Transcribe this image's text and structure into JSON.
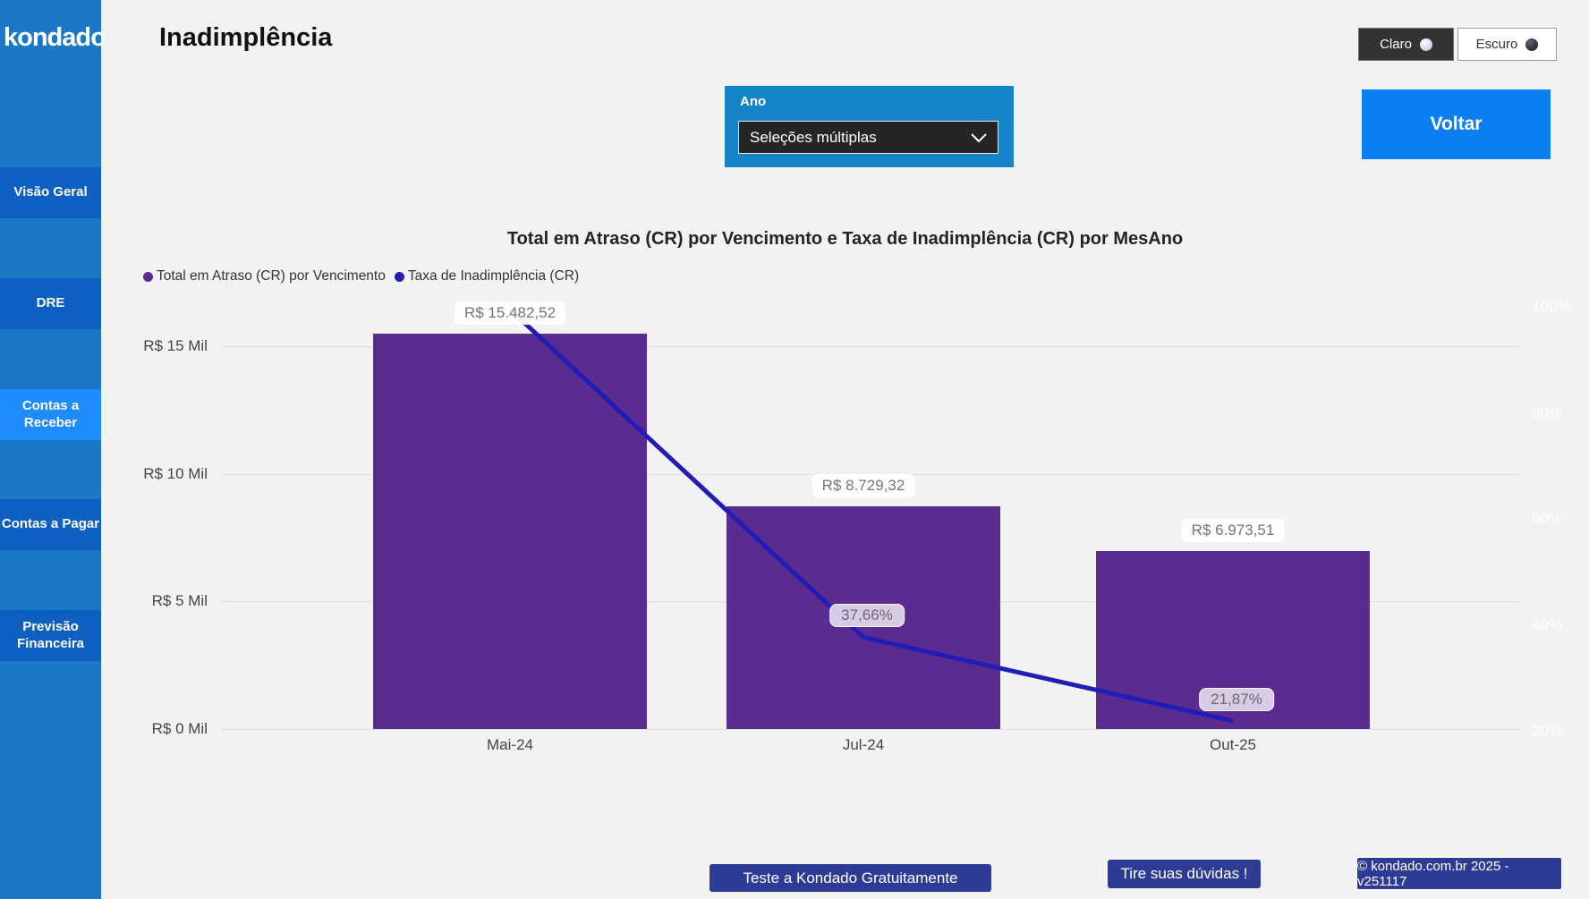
{
  "app": {
    "logo": "kondado"
  },
  "sidebar": {
    "items": [
      {
        "label": "Visão Geral",
        "active": false
      },
      {
        "label": "DRE",
        "active": false
      },
      {
        "label": "Contas a Receber",
        "active": true
      },
      {
        "label": "Contas a Pagar",
        "active": false
      },
      {
        "label": "Previsão Financeira",
        "active": false
      }
    ]
  },
  "header": {
    "title": "Inadimplência"
  },
  "theme_toggle": {
    "light_label": "Claro",
    "dark_label": "Escuro"
  },
  "filter": {
    "label": "Ano",
    "value": "Seleções múltiplas"
  },
  "voltar_label": "Voltar",
  "chart_data": {
    "type": "bar",
    "subtype": "combo-bar-line",
    "title": "Total em Atraso (CR) por Vencimento e Taxa de Inadimplência (CR) por MesAno",
    "categories": [
      "Mai-24",
      "Jul-24",
      "Out-25"
    ],
    "series": [
      {
        "name": "Total em Atraso (CR) por Vencimento",
        "type": "bar",
        "axis": "left",
        "values": [
          15482.52,
          8729.32,
          6973.51
        ],
        "labels": [
          "R$ 15.482,52",
          "R$ 8.729,32",
          "R$ 6.973,51"
        ],
        "color": "#5B2C8F"
      },
      {
        "name": "Taxa de Inadimplência (CR)",
        "type": "line",
        "axis": "right",
        "values": [
          99.5,
          37.66,
          21.87
        ],
        "labels": [
          "",
          "37,66%",
          "21,87%"
        ],
        "color": "#211CB5"
      }
    ],
    "left_axis": {
      "tick_labels": [
        "R$ 0 Mil",
        "R$ 5 Mil",
        "R$ 10 Mil",
        "R$ 15 Mil"
      ],
      "tick_values": [
        0,
        5000,
        10000,
        15000
      ],
      "min": 0,
      "max": 15000
    },
    "right_axis": {
      "tick_labels": [
        "20%",
        "40%",
        "60%",
        "80%",
        "100%"
      ],
      "tick_values": [
        20,
        40,
        60,
        80,
        100
      ],
      "min": 20,
      "max": 100
    },
    "grid": "dotted",
    "legend_position": "top-left"
  },
  "footer": {
    "cta_trial": "Teste a Kondado Gratuitamente",
    "cta_help": "Tire suas dúvidas !",
    "version": "© kondado.com.br 2025 - v251117"
  },
  "colors": {
    "sidebar_bg": "#1B78C6",
    "sidebar_item_bg": "#0D5FC2",
    "sidebar_active_bg": "#1E8CFF",
    "panel_blue": "#1583C7",
    "accent_blue": "#0B7FF2",
    "bar_purple": "#5B2C8F",
    "line_blue": "#211CB5",
    "footer_navy": "#2D3B94"
  }
}
